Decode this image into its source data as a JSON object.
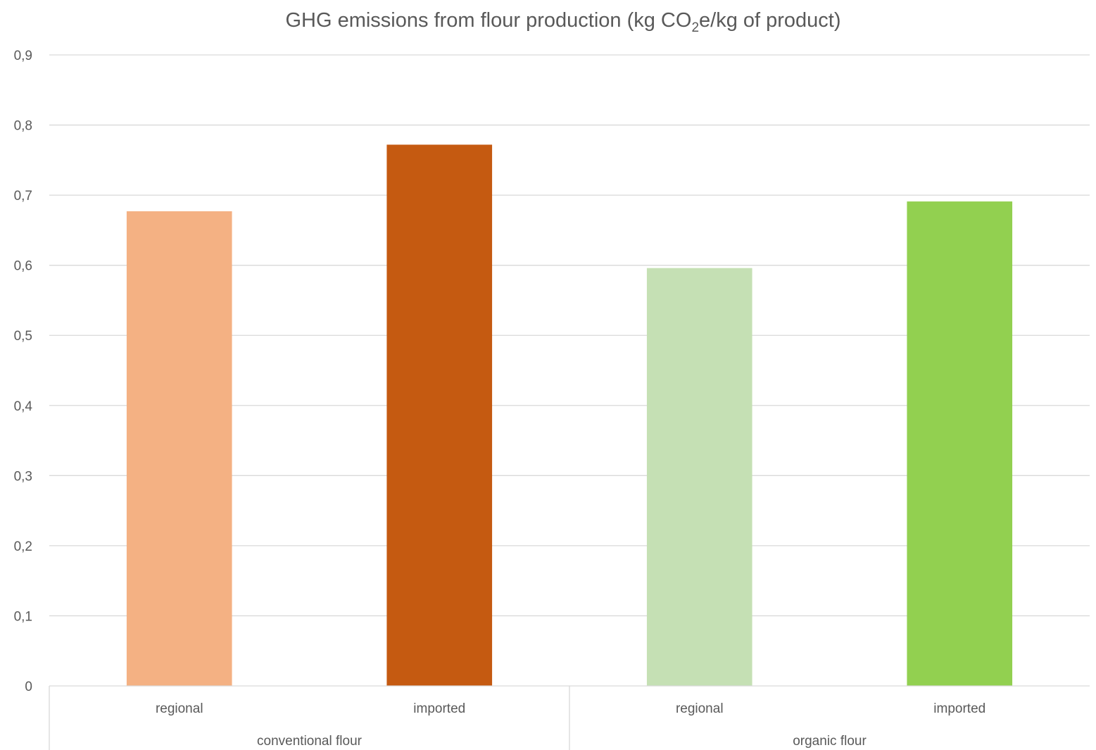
{
  "chart_data": {
    "type": "bar",
    "title": {
      "prefix": "GHG emissions from flour production (kg CO",
      "subscript": "2",
      "suffix": "e/kg of product)"
    },
    "xlabel": "",
    "ylabel": "",
    "ylim": [
      0,
      0.9
    ],
    "y_ticks": [
      {
        "value": 0,
        "label": "0"
      },
      {
        "value": 0.1,
        "label": "0,1"
      },
      {
        "value": 0.2,
        "label": "0,2"
      },
      {
        "value": 0.3,
        "label": "0,3"
      },
      {
        "value": 0.4,
        "label": "0,4"
      },
      {
        "value": 0.5,
        "label": "0,5"
      },
      {
        "value": 0.6,
        "label": "0,6"
      },
      {
        "value": 0.7,
        "label": "0,7"
      },
      {
        "value": 0.8,
        "label": "0,8"
      },
      {
        "value": 0.9,
        "label": "0,9"
      }
    ],
    "grid": true,
    "legend": "none",
    "groups": [
      {
        "name": "conventional flour",
        "bars": [
          {
            "category": "regional",
            "value": 0.677,
            "color": "#f4b183"
          },
          {
            "category": "imported",
            "value": 0.772,
            "color": "#c55a11"
          }
        ]
      },
      {
        "name": "organic flour",
        "bars": [
          {
            "category": "regional",
            "value": 0.596,
            "color": "#c5e0b4"
          },
          {
            "category": "imported",
            "value": 0.691,
            "color": "#92d050"
          }
        ]
      }
    ]
  }
}
